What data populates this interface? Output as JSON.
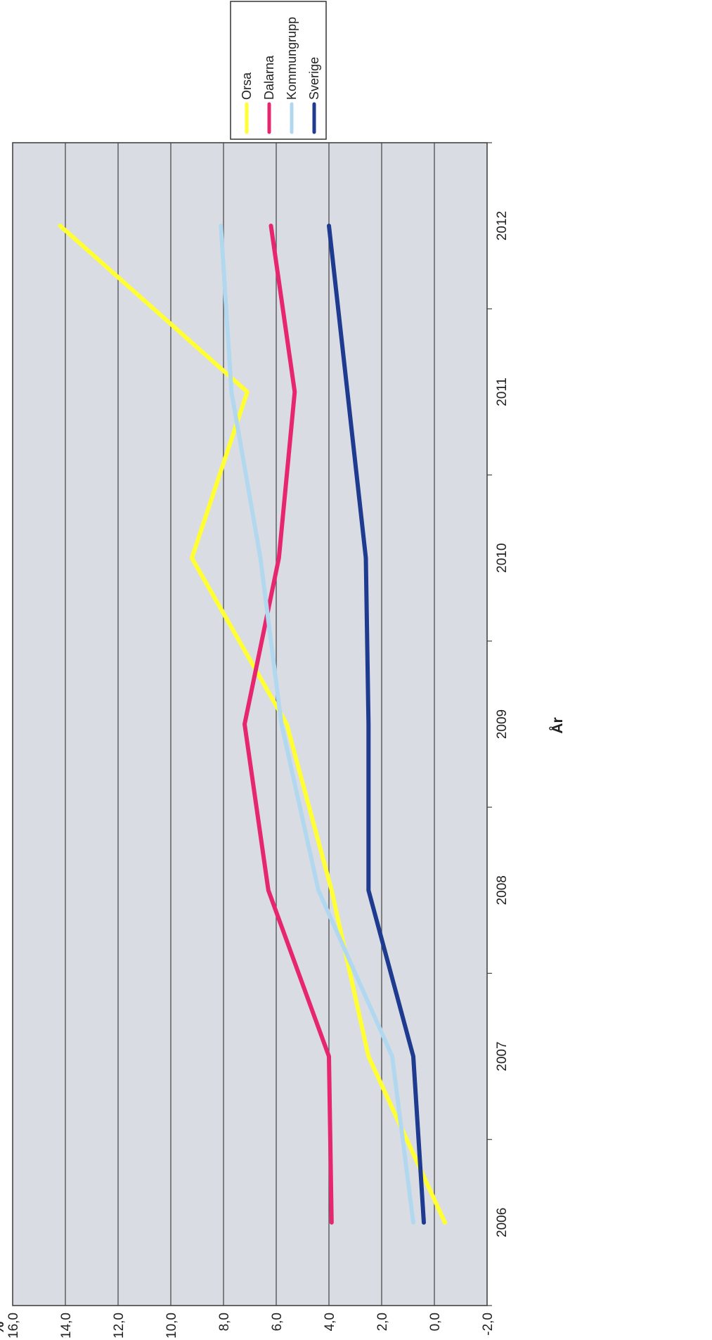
{
  "chart_data": {
    "type": "line",
    "orientation": "rotated-90-ccw",
    "x": [
      "2006",
      "2007",
      "2008",
      "2009",
      "2010",
      "2011",
      "2012"
    ],
    "xlabel": "År",
    "ylabel": "%",
    "ylim": [
      -2.0,
      16.0
    ],
    "yticks": [
      {
        "value": -2.0,
        "label": "-2,0",
        "color": "#e8102e"
      },
      {
        "value": 0.0,
        "label": "0,0",
        "color": "#222222"
      },
      {
        "value": 2.0,
        "label": "2,0",
        "color": "#222222"
      },
      {
        "value": 4.0,
        "label": "4,0",
        "color": "#222222"
      },
      {
        "value": 6.0,
        "label": "6,0",
        "color": "#222222"
      },
      {
        "value": 8.0,
        "label": "8,0",
        "color": "#222222"
      },
      {
        "value": 10.0,
        "label": "10,0",
        "color": "#222222"
      },
      {
        "value": 12.0,
        "label": "12,0",
        "color": "#222222"
      },
      {
        "value": 14.0,
        "label": "14,0",
        "color": "#222222"
      },
      {
        "value": 16.0,
        "label": "16,0",
        "color": "#222222"
      }
    ],
    "grid": true,
    "legend_position": "top-right",
    "plot_background": "#d9dde3",
    "series": [
      {
        "name": "Orsa",
        "color": "#ffff33",
        "values": [
          -0.4,
          2.5,
          3.9,
          5.6,
          9.2,
          7.1,
          14.2
        ]
      },
      {
        "name": "Dalarna",
        "color": "#e6266f",
        "values": [
          3.9,
          4.0,
          6.3,
          7.2,
          5.9,
          5.3,
          6.2
        ]
      },
      {
        "name": "Kommungrupp",
        "color": "#b2d8ef",
        "values": [
          0.8,
          1.6,
          4.4,
          5.8,
          6.6,
          7.7,
          8.1
        ]
      },
      {
        "name": "Sverige",
        "color": "#1f3b8f",
        "values": [
          0.4,
          0.8,
          2.5,
          2.5,
          2.6,
          3.3,
          4.0
        ]
      }
    ]
  }
}
